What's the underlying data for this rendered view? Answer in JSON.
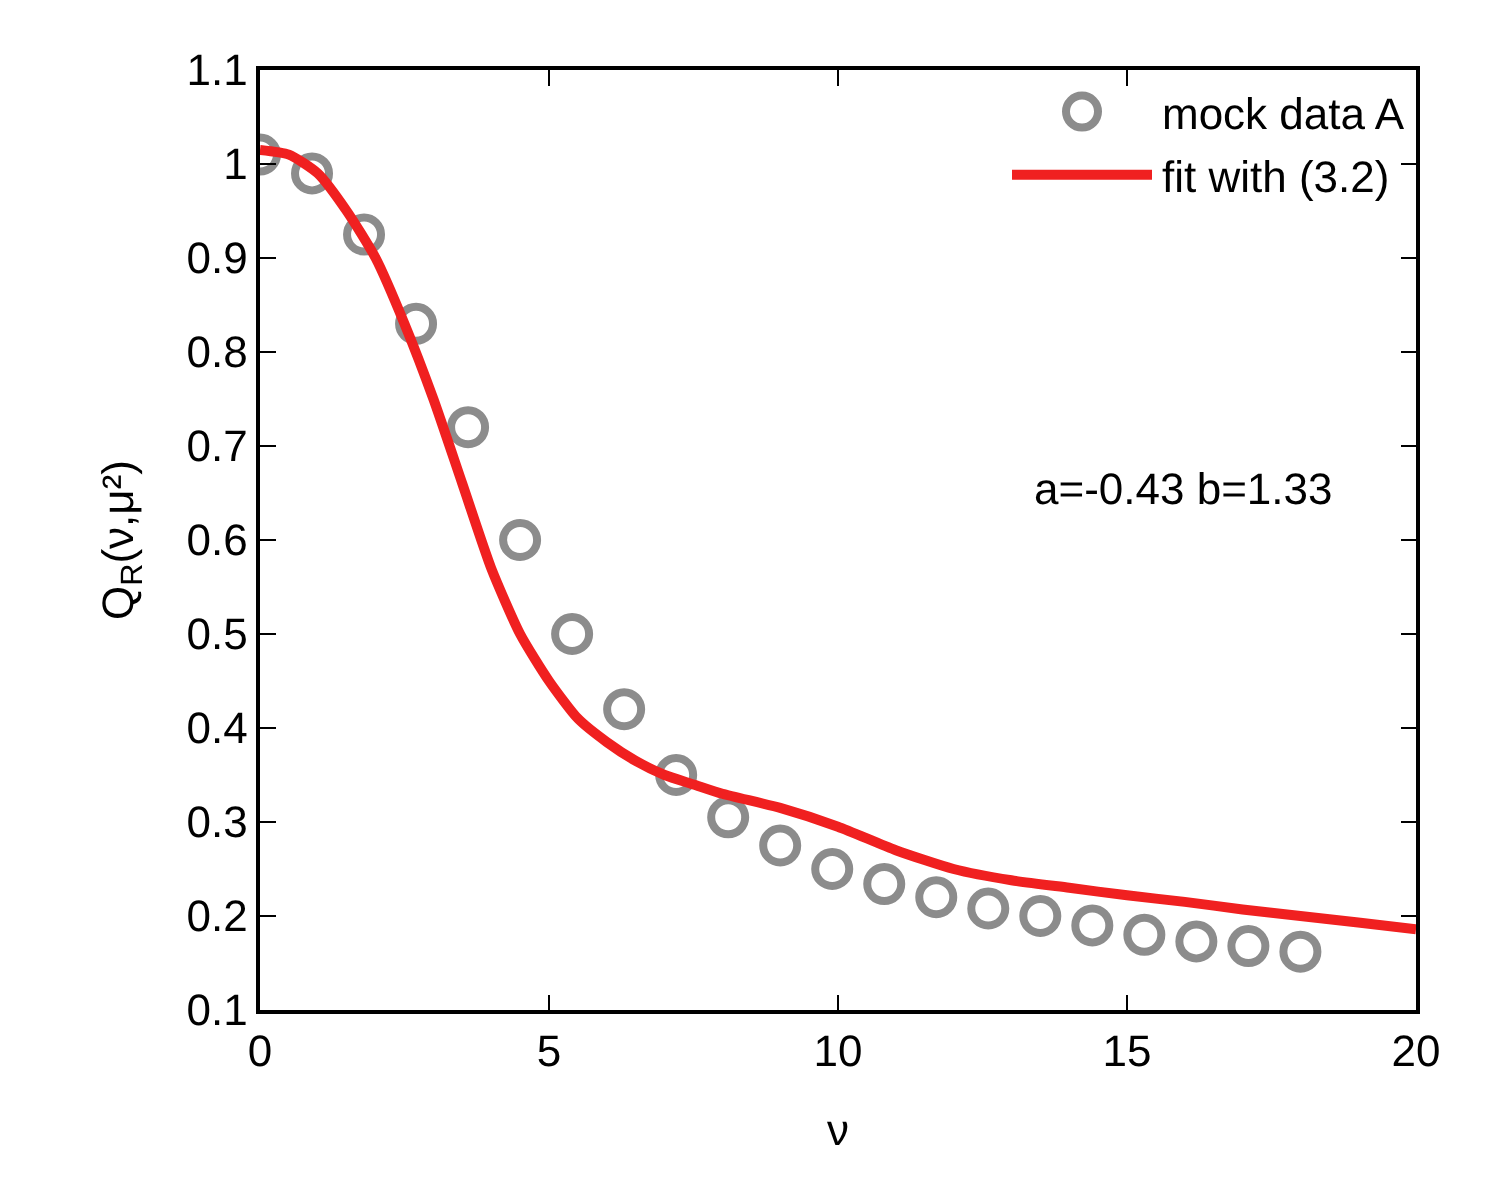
{
  "chart_data": {
    "type": "scatter",
    "xlabel": "ν",
    "ylabel": "Q$_{R}$(ν,μ²)",
    "xlim": [
      0,
      20
    ],
    "xticks": [
      0,
      5,
      10,
      15,
      20
    ],
    "ylim": [
      0.1,
      1.1
    ],
    "yticks": [
      0.1,
      0.2,
      0.3,
      0.4,
      0.5,
      0.6,
      0.7,
      0.8,
      0.9,
      1,
      1.1
    ],
    "grid": false,
    "legend": "top right",
    "annotations": [
      "a=-0.43 b=1.33"
    ],
    "series": [
      {
        "name": "mock data A",
        "marker": "circle",
        "color": "#8c8c8c",
        "x": [
          0,
          0.9,
          1.8,
          2.7,
          3.6,
          4.5,
          5.4,
          6.3,
          7.2,
          8.1,
          9.0,
          9.9,
          10.8,
          11.7,
          12.6,
          13.5,
          14.4,
          15.3,
          16.2,
          17.1,
          18.0
        ],
        "values": [
          1.01,
          0.99,
          0.925,
          0.83,
          0.72,
          0.6,
          0.5,
          0.42,
          0.35,
          0.305,
          0.275,
          0.25,
          0.234,
          0.22,
          0.208,
          0.2,
          0.19,
          0.18,
          0.173,
          0.168,
          0.162
        ]
      },
      {
        "name": "fit with (3.2)",
        "type": "line",
        "color": "#f02020",
        "line_style": "solid",
        "x": [
          0,
          0.5,
          1,
          1.5,
          2,
          2.5,
          3,
          3.5,
          4,
          4.5,
          5,
          5.5,
          6,
          6.5,
          7,
          7.5,
          8,
          9,
          10,
          11,
          12,
          13,
          14,
          15,
          16,
          17,
          18,
          19,
          20
        ],
        "values": [
          1.015,
          1.01,
          0.99,
          0.95,
          0.9,
          0.83,
          0.75,
          0.66,
          0.57,
          0.5,
          0.45,
          0.41,
          0.385,
          0.365,
          0.35,
          0.34,
          0.33,
          0.315,
          0.295,
          0.27,
          0.25,
          0.238,
          0.23,
          0.222,
          0.215,
          0.207,
          0.2,
          0.193,
          0.186
        ]
      }
    ]
  }
}
